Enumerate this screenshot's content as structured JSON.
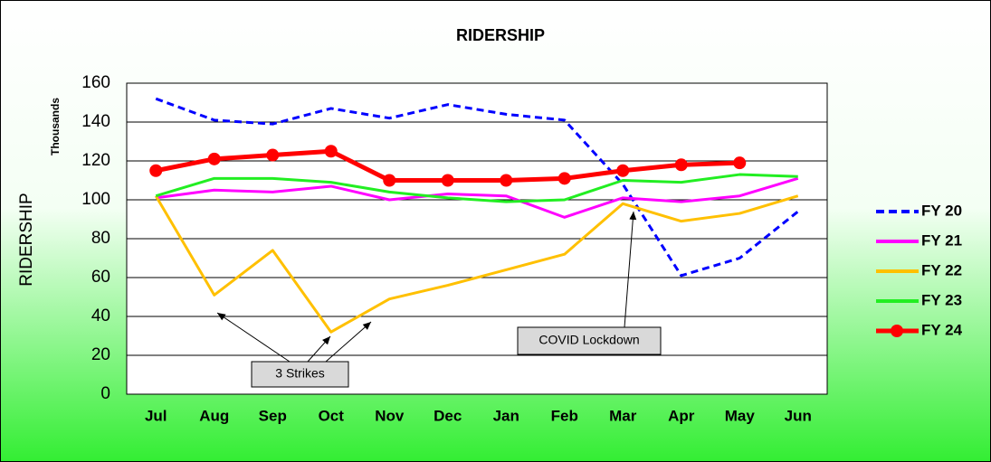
{
  "chart_data": {
    "type": "line",
    "title": "RIDERSHIP",
    "y_label": "RIDERSHIP",
    "y_unit": "Thousands",
    "categories": [
      "Jul",
      "Aug",
      "Sep",
      "Oct",
      "Nov",
      "Dec",
      "Jan",
      "Feb",
      "Mar",
      "Apr",
      "May",
      "Jun"
    ],
    "series": [
      {
        "name": "FY 20",
        "color": "#0000ff",
        "style": "dashed",
        "values": [
          152,
          141,
          139,
          147,
          142,
          149,
          144,
          141,
          108,
          61,
          70,
          94
        ]
      },
      {
        "name": "FY 21",
        "color": "#ff00ff",
        "values": [
          101,
          105,
          104,
          107,
          100,
          103,
          102,
          91,
          101,
          99,
          102,
          111
        ]
      },
      {
        "name": "FY 22",
        "color": "#ffc000",
        "values": [
          102,
          51,
          74,
          32,
          49,
          56,
          64,
          72,
          98,
          89,
          93,
          102
        ]
      },
      {
        "name": "FY 23",
        "color": "#22ee22",
        "values": [
          102,
          111,
          111,
          109,
          104,
          101,
          99,
          100,
          110,
          109,
          113,
          112
        ]
      },
      {
        "name": "FY 24",
        "color": "#ff0000",
        "marker": "circle",
        "values": [
          115,
          121,
          123,
          125,
          110,
          110,
          110,
          111,
          115,
          118,
          119,
          null
        ]
      }
    ],
    "annotations": [
      "3 Strikes",
      "COVID Lockdown"
    ],
    "ylim": [
      0,
      160
    ],
    "yticks": [
      0,
      20,
      40,
      60,
      80,
      100,
      120,
      140,
      160
    ],
    "grid": true,
    "legend": "right"
  }
}
